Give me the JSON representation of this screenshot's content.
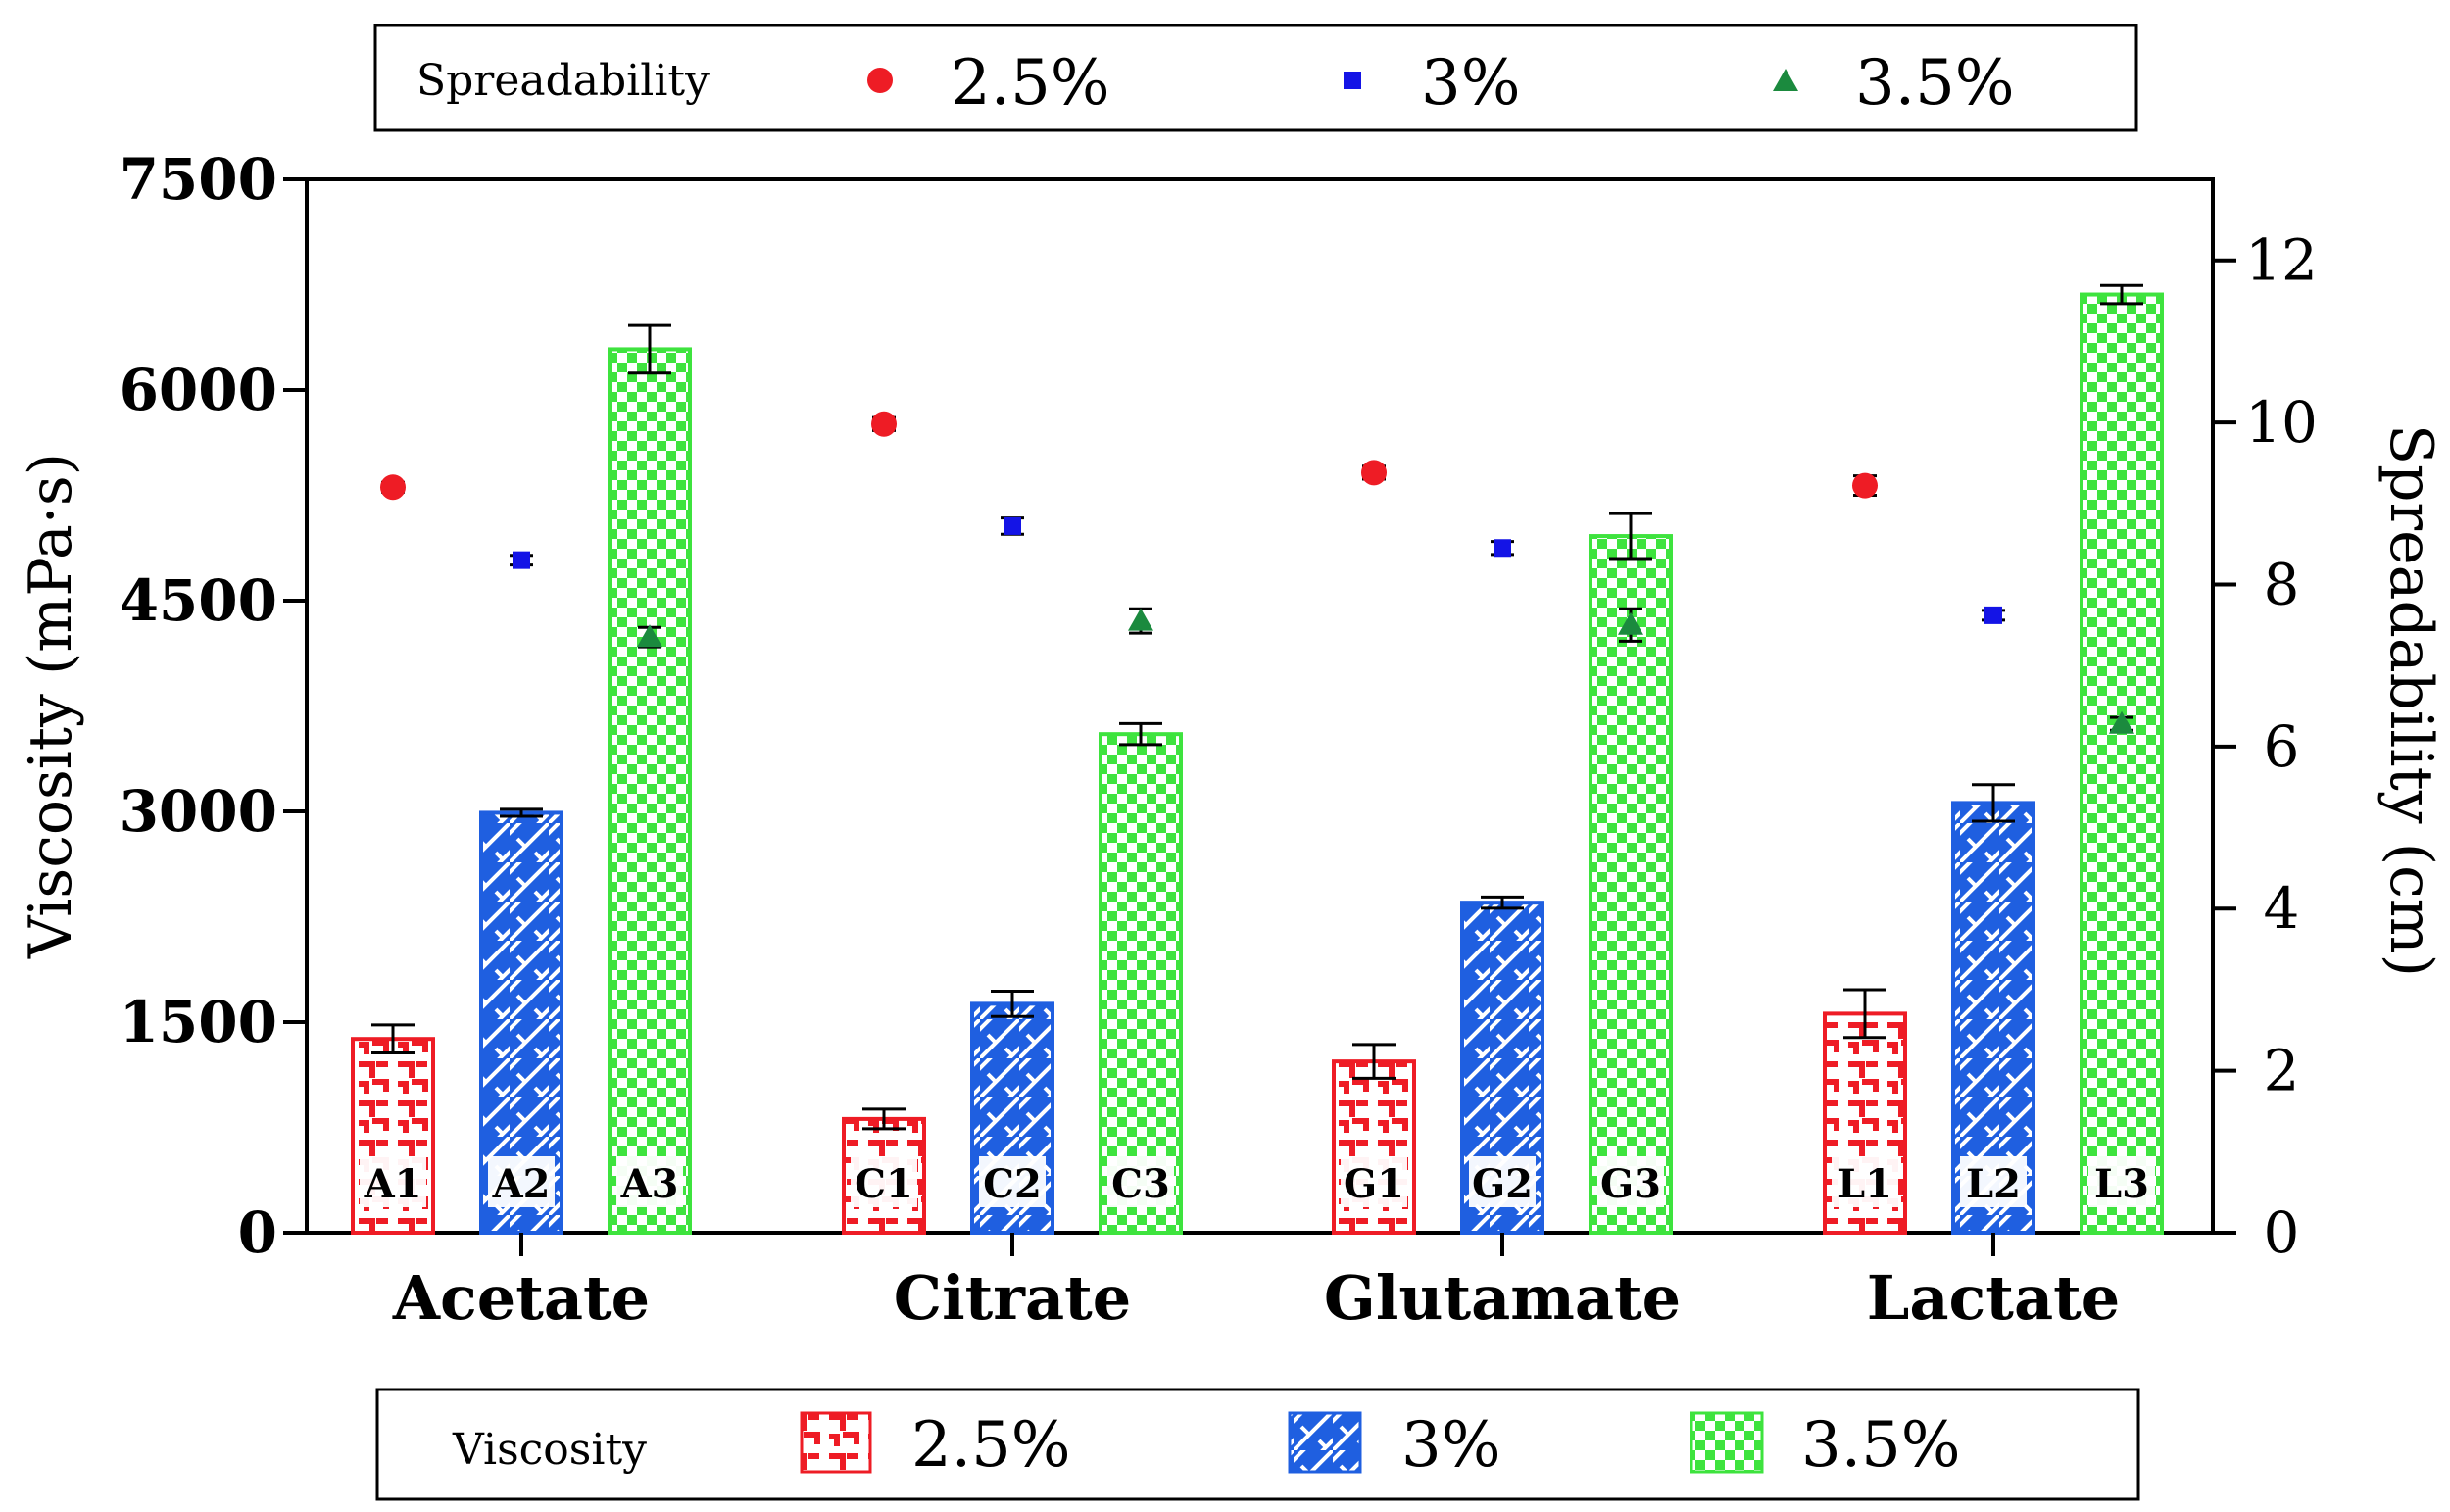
{
  "chart_data": {
    "type": "bar",
    "categories": [
      "Acetate",
      "Citrate",
      "Glutamate",
      "Lactate"
    ],
    "bar_labels": [
      [
        "A1",
        "A2",
        "A3"
      ],
      [
        "C1",
        "C2",
        "C3"
      ],
      [
        "G1",
        "G2",
        "G3"
      ],
      [
        "L1",
        "L2",
        "L3"
      ]
    ],
    "left_axis": {
      "label": "Viscosity (mPa·s)",
      "ylim": [
        0,
        7500
      ],
      "ticks": [
        "0",
        "1500",
        "3000",
        "4500",
        "6000",
        "7500"
      ],
      "tick_values": [
        0,
        1500,
        3000,
        4500,
        6000,
        7500
      ]
    },
    "right_axis": {
      "label": "Spreadability (cm)",
      "ylim": [
        0,
        13
      ],
      "ticks": [
        "0",
        "2",
        "4",
        "6",
        "8",
        "10",
        "12"
      ],
      "tick_values": [
        0,
        2,
        4,
        6,
        8,
        10,
        12
      ]
    },
    "viscosity_series": [
      {
        "name": "2.5%",
        "color": "#ee1c25",
        "pattern": "brick",
        "values": [
          1380,
          810,
          1220,
          1560
        ],
        "errors": [
          100,
          70,
          120,
          170
        ]
      },
      {
        "name": "3%",
        "color": "#1f5fe0",
        "pattern": "diag",
        "values": [
          2990,
          1630,
          2350,
          3060
        ],
        "errors": [
          25,
          90,
          40,
          130
        ]
      },
      {
        "name": "3.5%",
        "color": "#3ee33e",
        "pattern": "checker",
        "values": [
          6290,
          3550,
          4960,
          6680
        ],
        "errors": [
          170,
          75,
          160,
          65
        ]
      }
    ],
    "spreadability_series": [
      {
        "name": "2.5%",
        "color": "#ee1c25",
        "marker": "circle",
        "values": [
          9.2,
          9.98,
          9.38,
          9.22
        ],
        "errors": [
          0.06,
          0.08,
          0.08,
          0.12
        ]
      },
      {
        "name": "3%",
        "color": "#1414e6",
        "marker": "square",
        "values": [
          8.3,
          8.72,
          8.45,
          7.62
        ],
        "errors": [
          0.06,
          0.1,
          0.08,
          0.06
        ]
      },
      {
        "name": "3.5%",
        "color": "#1b8a3e",
        "marker": "triangle",
        "values": [
          7.35,
          7.55,
          7.5,
          6.28
        ],
        "errors": [
          0.12,
          0.15,
          0.2,
          0.08
        ]
      }
    ],
    "legend_top": {
      "title": "Spreadability",
      "items": [
        "2.5%",
        "3%",
        "3.5%"
      ]
    },
    "legend_bottom": {
      "title": "Viscosity",
      "items": [
        "2.5%",
        "3%",
        "3.5%"
      ]
    }
  }
}
